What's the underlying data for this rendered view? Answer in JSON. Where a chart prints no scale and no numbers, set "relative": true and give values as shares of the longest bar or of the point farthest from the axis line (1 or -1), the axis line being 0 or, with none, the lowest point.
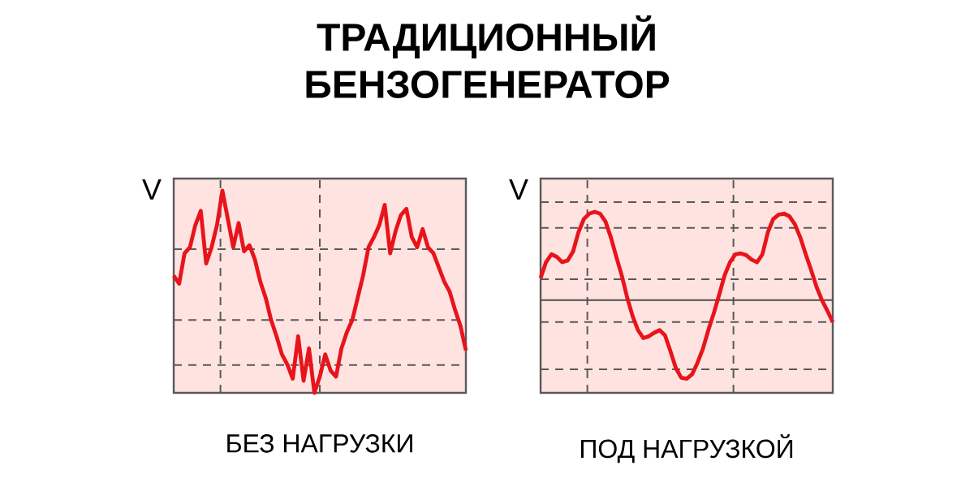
{
  "chart_data": [
    {
      "type": "line",
      "title": "ТРАДИЦИОННЫЙ БЕНЗОГЕНЕРАТОР",
      "ylabel": "V",
      "xlabel": "БЕЗ НАГРУЗКИ",
      "relative": true,
      "grid": true,
      "marker": "none",
      "categories": [
        null,
        null,
        null,
        null,
        null,
        null,
        null,
        null,
        null,
        null,
        null,
        null,
        null,
        null,
        null,
        null,
        null,
        null,
        null,
        null,
        null,
        null,
        null,
        null,
        null,
        null,
        null,
        null,
        null,
        null,
        null,
        null,
        null,
        null,
        null,
        null,
        null,
        null,
        null,
        null,
        null,
        null,
        null,
        null,
        null,
        null,
        null,
        null,
        null,
        null,
        null,
        null,
        null,
        null,
        null
      ],
      "series": [
        {
          "color": "#e8141c",
          "values": [
            0.58,
            0.54,
            0.69,
            0.72,
            0.83,
            0.9,
            0.64,
            0.72,
            0.83,
            1,
            0.86,
            0.72,
            0.84,
            0.7,
            0.73,
            0.66,
            0.55,
            0.47,
            0.36,
            0.28,
            0.19,
            0.14,
            0.07,
            0.28,
            0.06,
            0.22,
            0,
            0.08,
            0.19,
            0.11,
            0.08,
            0.22,
            0.3,
            0.36,
            0.47,
            0.58,
            0.72,
            0.77,
            0.83,
            0.93,
            0.69,
            0.8,
            0.88,
            0.91,
            0.77,
            0.72,
            0.81,
            0.72,
            0.69,
            0.62,
            0.55,
            0.5,
            0.41,
            0.33,
            0.21
          ]
        }
      ]
    },
    {
      "type": "line",
      "ylabel": "V",
      "xlabel": "ПОД НАГРУЗКОЙ",
      "relative": true,
      "grid": true,
      "marker": "none",
      "categories": [
        null,
        null,
        null,
        null,
        null,
        null,
        null,
        null,
        null,
        null,
        null,
        null,
        null,
        null,
        null,
        null,
        null,
        null,
        null,
        null,
        null,
        null,
        null,
        null,
        null,
        null,
        null,
        null,
        null,
        null,
        null,
        null,
        null,
        null,
        null,
        null,
        null,
        null,
        null,
        null,
        null,
        null,
        null,
        null,
        null,
        null,
        null,
        null,
        null,
        null,
        null,
        null,
        null,
        null,
        null
      ],
      "series": [
        {
          "color": "#e8141c",
          "values": [
            0.25,
            0.43,
            0.52,
            0.49,
            0.43,
            0.45,
            0.55,
            0.77,
            0.92,
            0.98,
            1,
            0.98,
            0.89,
            0.71,
            0.49,
            0.28,
            0.03,
            -0.18,
            -0.34,
            -0.43,
            -0.41,
            -0.37,
            -0.34,
            -0.4,
            -0.58,
            -0.77,
            -0.88,
            -0.89,
            -0.84,
            -0.71,
            -0.55,
            -0.34,
            -0.15,
            0.06,
            0.28,
            0.43,
            0.52,
            0.53,
            0.51,
            0.46,
            0.43,
            0.52,
            0.77,
            0.92,
            0.97,
            0.98,
            0.95,
            0.86,
            0.71,
            0.52,
            0.34,
            0.15,
            0,
            -0.12,
            -0.25
          ]
        }
      ]
    }
  ]
}
